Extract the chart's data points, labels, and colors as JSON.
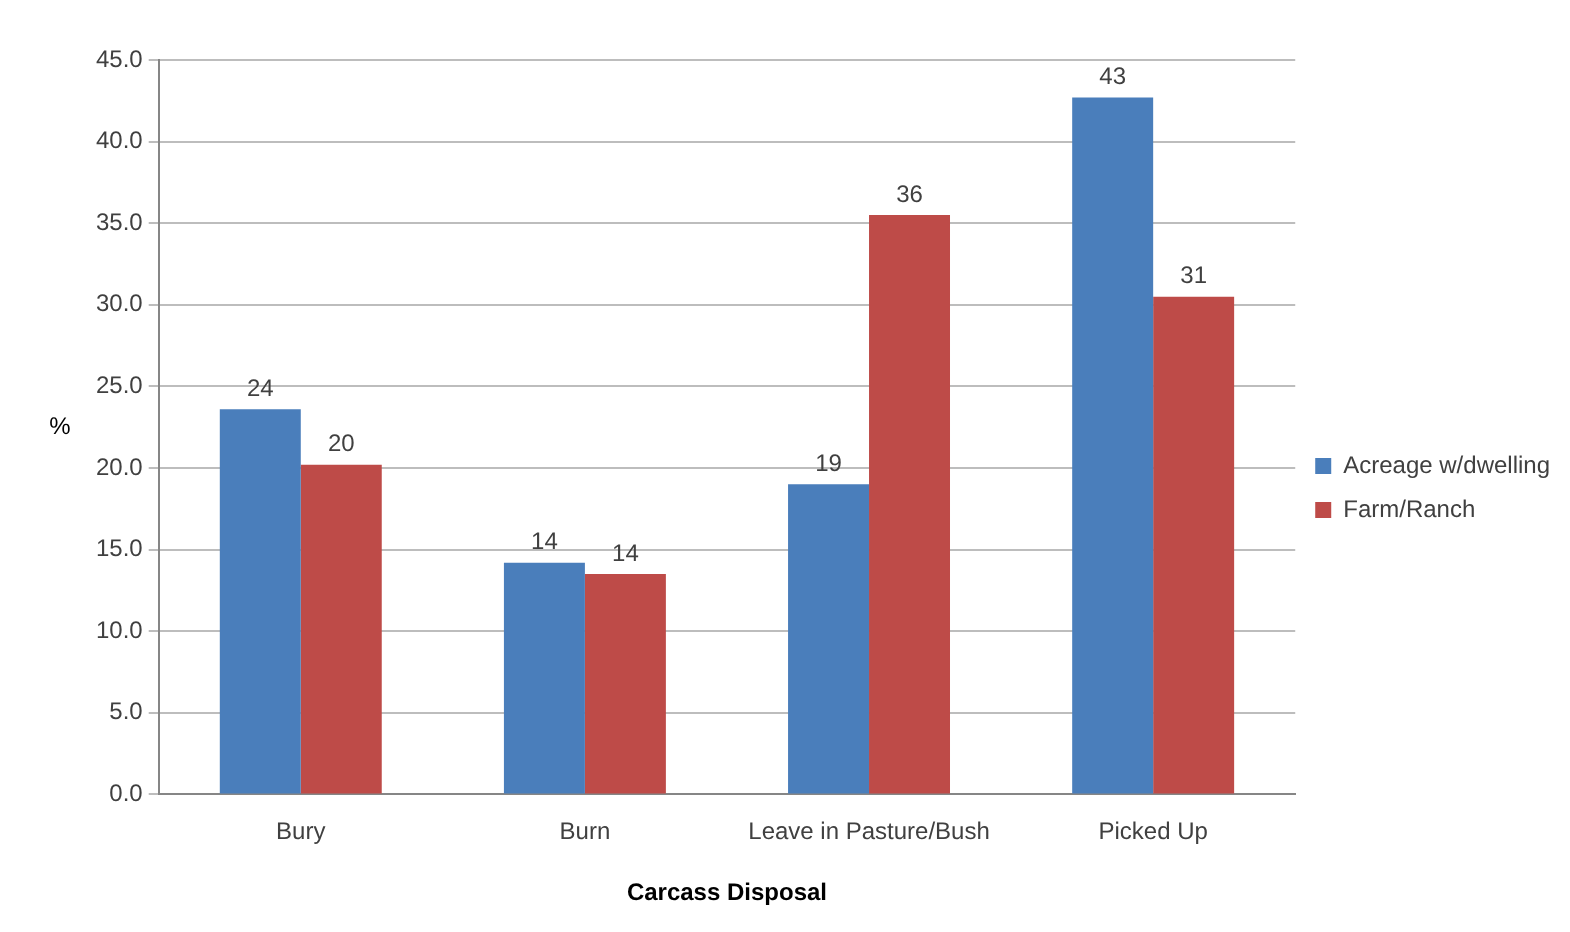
{
  "chart_data": {
    "type": "bar",
    "xlabel": "Carcass Disposal",
    "ylabel": "%",
    "categories": [
      "Bury",
      "Burn",
      "Leave in Pasture/Bush",
      "Picked Up"
    ],
    "series": [
      {
        "name": "Acreage w/dwelling",
        "color": "#4a7ebb",
        "values": [
          23.6,
          14.2,
          19.0,
          42.7
        ],
        "value_labels": [
          "24",
          "14",
          "19",
          "43"
        ]
      },
      {
        "name": "Farm/Ranch",
        "color": "#be4b48",
        "values": [
          20.2,
          13.5,
          35.5,
          30.5
        ],
        "value_labels": [
          "20",
          "14",
          "36",
          "31"
        ]
      }
    ],
    "ylim": [
      0,
      45
    ],
    "yticks": [
      {
        "value": 0,
        "label": "0.0"
      },
      {
        "value": 5,
        "label": "5.0"
      },
      {
        "value": 10,
        "label": "10.0"
      },
      {
        "value": 15,
        "label": "15.0"
      },
      {
        "value": 20,
        "label": "20.0"
      },
      {
        "value": 25,
        "label": "25.0"
      },
      {
        "value": 30,
        "label": "30.0"
      },
      {
        "value": 35,
        "label": "35.0"
      },
      {
        "value": 40,
        "label": "40.0"
      },
      {
        "value": 45,
        "label": "45.0"
      }
    ],
    "grid": "y",
    "legend": "right"
  }
}
